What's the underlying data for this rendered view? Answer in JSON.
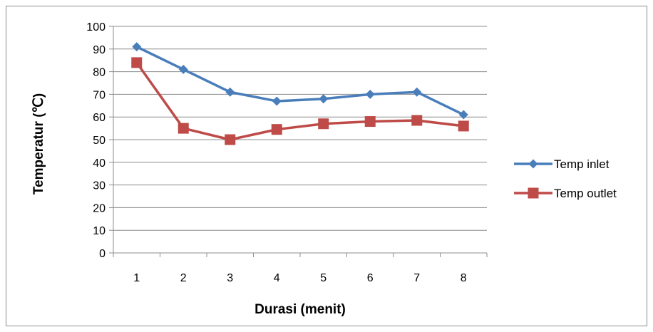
{
  "chart_data": {
    "type": "line",
    "xlabel": "Durasi (menit)",
    "ylabel": "Temperatur (℃)",
    "categories": [
      "1",
      "2",
      "3",
      "4",
      "5",
      "6",
      "7",
      "8"
    ],
    "y_ticks": [
      "0",
      "10",
      "20",
      "30",
      "40",
      "50",
      "60",
      "70",
      "80",
      "90",
      "100"
    ],
    "ylim": [
      0,
      100
    ],
    "grid": "horizontal",
    "legend_position": "right",
    "series": [
      {
        "name": "Temp inlet",
        "color": "#4a7ebb",
        "marker": "diamond",
        "values": [
          91,
          81,
          71,
          67,
          68,
          70,
          71,
          61
        ]
      },
      {
        "name": "Temp outlet",
        "color": "#be4b48",
        "marker": "square",
        "values": [
          84,
          55,
          50,
          54.5,
          57,
          58,
          58.5,
          56
        ]
      }
    ]
  }
}
